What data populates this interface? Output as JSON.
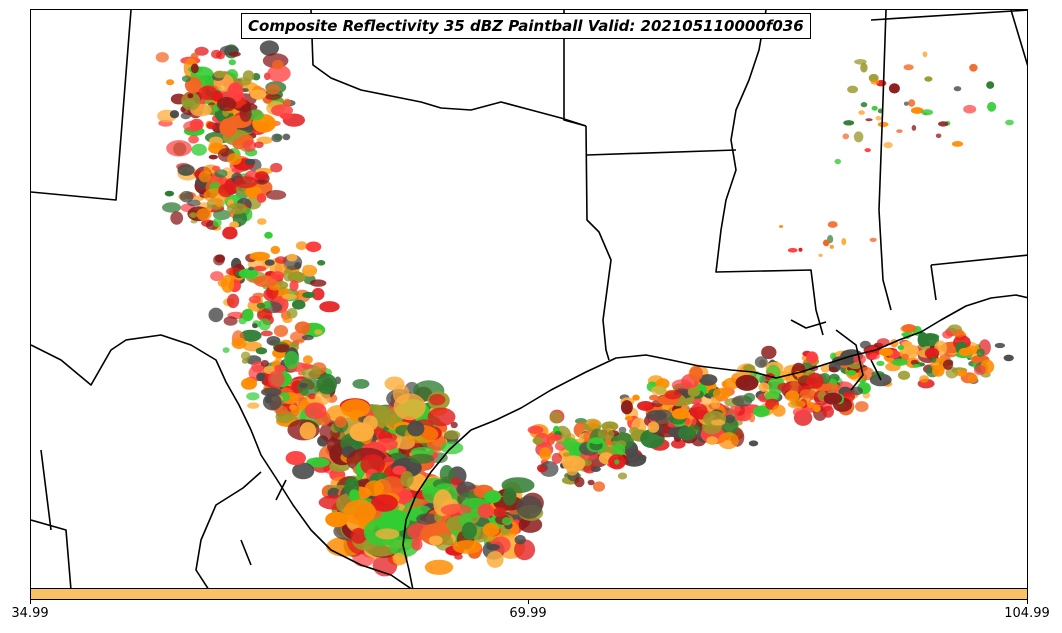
{
  "title": "Composite Reflectivity 35 dBZ Paintball Valid: 202105110000f036",
  "colorbar": {
    "color": "#f9c265",
    "ticks": [
      "34.99",
      "69.99",
      "104.99"
    ]
  },
  "member_colors": [
    "#e31a1c",
    "#ff8c00",
    "#fdae3e",
    "#33cc33",
    "#2e7d32",
    "#8b1a1a",
    "#4a4a4a",
    "#9a9a2a",
    "#ff4040",
    "#f26522"
  ],
  "map_style": {
    "border_color": "#000000",
    "background": "#ffffff"
  }
}
